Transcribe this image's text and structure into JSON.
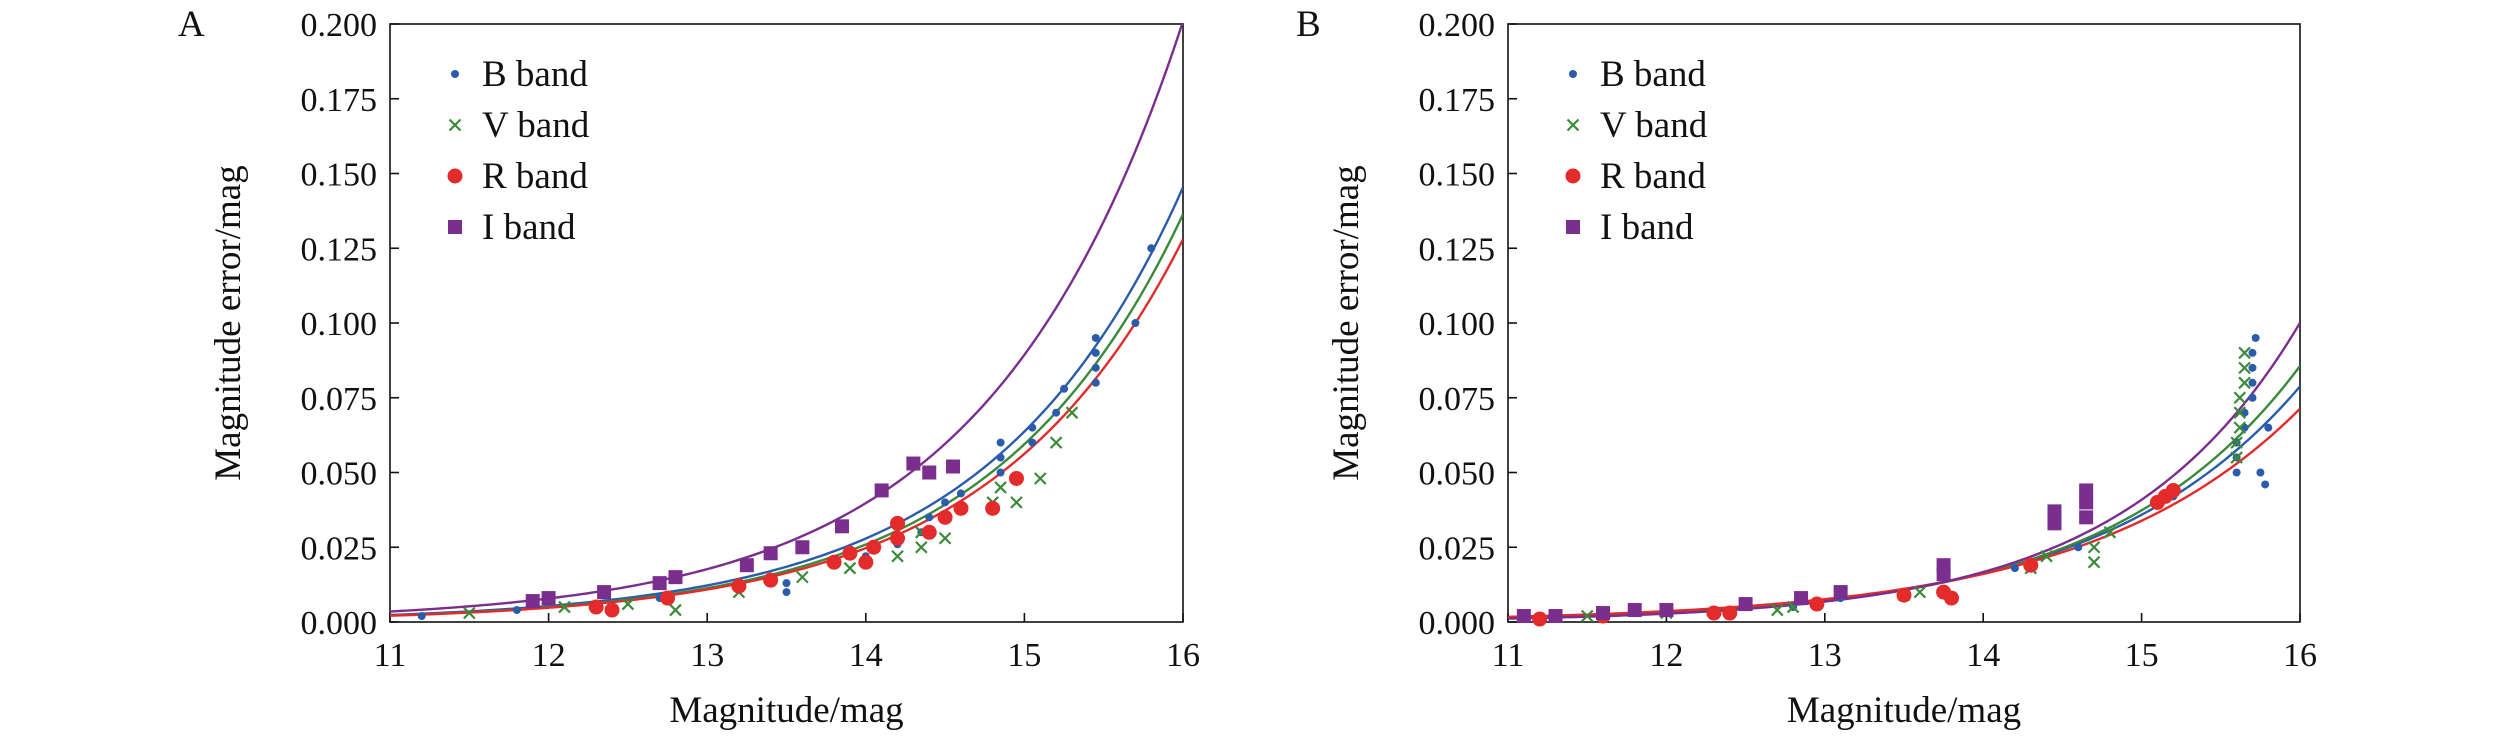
{
  "colors": {
    "B": "#2a5caa",
    "V": "#3a8a3a",
    "R": "#e32b2b",
    "I": "#7a2e8e",
    "axis": "#111111"
  },
  "chart_data": [
    {
      "panel_label": "A",
      "type": "scatter",
      "xlabel": "Magnitude/mag",
      "ylabel": "Magnitude error/mag",
      "xlim": [
        11,
        16
      ],
      "ylim": [
        0,
        0.2
      ],
      "x_ticks": [
        "11",
        "12",
        "13",
        "14",
        "15",
        "16"
      ],
      "y_ticks": [
        "0.000",
        "0.025",
        "0.050",
        "0.075",
        "0.100",
        "0.125",
        "0.150",
        "0.175",
        "0.200"
      ],
      "legend_position": "top-left",
      "series": [
        {
          "name": "B band",
          "marker": "dot",
          "color_key": "B",
          "points": [
            [
              11.2,
              0.002
            ],
            [
              11.8,
              0.004
            ],
            [
              12.3,
              0.006
            ],
            [
              12.7,
              0.008
            ],
            [
              13.2,
              0.011
            ],
            [
              13.5,
              0.013
            ],
            [
              13.5,
              0.01
            ],
            [
              13.8,
              0.02
            ],
            [
              14.0,
              0.022
            ],
            [
              14.2,
              0.026
            ],
            [
              14.35,
              0.03
            ],
            [
              14.4,
              0.035
            ],
            [
              14.5,
              0.04
            ],
            [
              14.6,
              0.043
            ],
            [
              14.85,
              0.05
            ],
            [
              14.85,
              0.055
            ],
            [
              14.85,
              0.06
            ],
            [
              15.05,
              0.06
            ],
            [
              15.05,
              0.065
            ],
            [
              15.2,
              0.07
            ],
            [
              15.25,
              0.078
            ],
            [
              15.45,
              0.08
            ],
            [
              15.45,
              0.085
            ],
            [
              15.45,
              0.09
            ],
            [
              15.45,
              0.095
            ],
            [
              15.7,
              0.1
            ],
            [
              15.8,
              0.125
            ]
          ],
          "fit": {
            "a": 0.00235,
            "k": 0.825
          }
        },
        {
          "name": "V band",
          "marker": "x",
          "color_key": "V",
          "points": [
            [
              11.5,
              0.003
            ],
            [
              12.1,
              0.005
            ],
            [
              12.5,
              0.006
            ],
            [
              12.8,
              0.004
            ],
            [
              13.2,
              0.01
            ],
            [
              13.6,
              0.015
            ],
            [
              13.9,
              0.018
            ],
            [
              14.2,
              0.022
            ],
            [
              14.35,
              0.025
            ],
            [
              14.35,
              0.03
            ],
            [
              14.5,
              0.028
            ],
            [
              14.8,
              0.04
            ],
            [
              14.85,
              0.045
            ],
            [
              14.95,
              0.04
            ],
            [
              15.1,
              0.048
            ],
            [
              15.2,
              0.06
            ],
            [
              15.3,
              0.07
            ]
          ],
          "fit": {
            "a": 0.00215,
            "k": 0.83
          }
        },
        {
          "name": "R band",
          "marker": "circle",
          "color_key": "R",
          "points": [
            [
              12.3,
              0.005
            ],
            [
              12.4,
              0.004
            ],
            [
              12.75,
              0.008
            ],
            [
              13.2,
              0.012
            ],
            [
              13.4,
              0.014
            ],
            [
              13.8,
              0.02
            ],
            [
              13.9,
              0.023
            ],
            [
              14.0,
              0.02
            ],
            [
              14.05,
              0.025
            ],
            [
              14.2,
              0.028
            ],
            [
              14.2,
              0.033
            ],
            [
              14.4,
              0.03
            ],
            [
              14.5,
              0.035
            ],
            [
              14.6,
              0.038
            ],
            [
              14.8,
              0.038
            ],
            [
              14.95,
              0.048
            ]
          ],
          "fit": {
            "a": 0.0021,
            "k": 0.822
          }
        },
        {
          "name": "I band",
          "marker": "square",
          "color_key": "I",
          "points": [
            [
              11.9,
              0.007
            ],
            [
              12.0,
              0.008
            ],
            [
              12.35,
              0.01
            ],
            [
              12.7,
              0.013
            ],
            [
              12.8,
              0.015
            ],
            [
              13.25,
              0.019
            ],
            [
              13.4,
              0.023
            ],
            [
              13.6,
              0.025
            ],
            [
              13.85,
              0.032
            ],
            [
              14.1,
              0.044
            ],
            [
              14.3,
              0.053
            ],
            [
              14.4,
              0.05
            ],
            [
              14.55,
              0.052
            ]
          ],
          "fit": {
            "a": 0.0035,
            "k": 0.81
          }
        }
      ]
    },
    {
      "panel_label": "B",
      "type": "scatter",
      "xlabel": "Magnitude/mag",
      "ylabel": "Magnitude error/mag",
      "xlim": [
        11,
        16
      ],
      "ylim": [
        0,
        0.2
      ],
      "x_ticks": [
        "11",
        "12",
        "13",
        "14",
        "15",
        "16"
      ],
      "y_ticks": [
        "0.000",
        "0.025",
        "0.050",
        "0.075",
        "0.100",
        "0.125",
        "0.150",
        "0.175",
        "0.200"
      ],
      "legend_position": "top-left",
      "series": [
        {
          "name": "B band",
          "marker": "dot",
          "color_key": "B",
          "points": [
            [
              11.3,
              0.002
            ],
            [
              11.8,
              0.003
            ],
            [
              12.3,
              0.003
            ],
            [
              12.8,
              0.005
            ],
            [
              13.1,
              0.008
            ],
            [
              13.5,
              0.01
            ],
            [
              14.2,
              0.018
            ],
            [
              14.6,
              0.025
            ],
            [
              15.1,
              0.04
            ],
            [
              15.2,
              0.042
            ],
            [
              15.6,
              0.05
            ],
            [
              15.6,
              0.055
            ],
            [
              15.6,
              0.06
            ],
            [
              15.65,
              0.065
            ],
            [
              15.65,
              0.07
            ],
            [
              15.7,
              0.075
            ],
            [
              15.7,
              0.08
            ],
            [
              15.7,
              0.085
            ],
            [
              15.7,
              0.09
            ],
            [
              15.72,
              0.095
            ],
            [
              15.75,
              0.05
            ],
            [
              15.78,
              0.046
            ],
            [
              15.8,
              0.065
            ]
          ],
          "fit": {
            "a": 0.00154,
            "k": 0.787
          }
        },
        {
          "name": "V band",
          "marker": "x",
          "color_key": "V",
          "points": [
            [
              11.5,
              0.002
            ],
            [
              12.0,
              0.003
            ],
            [
              12.7,
              0.004
            ],
            [
              12.8,
              0.005
            ],
            [
              13.5,
              0.009
            ],
            [
              13.6,
              0.01
            ],
            [
              14.3,
              0.018
            ],
            [
              14.4,
              0.022
            ],
            [
              14.7,
              0.02
            ],
            [
              14.7,
              0.025
            ],
            [
              14.8,
              0.03
            ],
            [
              15.6,
              0.055
            ],
            [
              15.6,
              0.06
            ],
            [
              15.62,
              0.065
            ],
            [
              15.62,
              0.07
            ],
            [
              15.62,
              0.075
            ],
            [
              15.65,
              0.08
            ],
            [
              15.65,
              0.085
            ],
            [
              15.65,
              0.09
            ]
          ],
          "fit": {
            "a": 0.00135,
            "k": 0.83
          }
        },
        {
          "name": "R band",
          "marker": "circle",
          "color_key": "R",
          "points": [
            [
              11.2,
              0.001
            ],
            [
              11.6,
              0.002
            ],
            [
              12.3,
              0.003
            ],
            [
              12.4,
              0.003
            ],
            [
              12.95,
              0.006
            ],
            [
              13.5,
              0.009
            ],
            [
              13.75,
              0.01
            ],
            [
              13.8,
              0.008
            ],
            [
              14.3,
              0.019
            ],
            [
              15.1,
              0.04
            ],
            [
              15.15,
              0.042
            ],
            [
              15.2,
              0.044
            ]
          ],
          "fit": {
            "a": 0.00172,
            "k": 0.745
          }
        },
        {
          "name": "I band",
          "marker": "square",
          "color_key": "I",
          "points": [
            [
              11.1,
              0.002
            ],
            [
              11.3,
              0.002
            ],
            [
              11.6,
              0.003
            ],
            [
              11.8,
              0.004
            ],
            [
              12.0,
              0.004
            ],
            [
              12.5,
              0.006
            ],
            [
              12.85,
              0.008
            ],
            [
              13.1,
              0.01
            ],
            [
              13.75,
              0.016
            ],
            [
              13.75,
              0.019
            ],
            [
              14.45,
              0.033
            ],
            [
              14.45,
              0.037
            ],
            [
              14.65,
              0.035
            ],
            [
              14.65,
              0.04
            ],
            [
              14.65,
              0.044
            ]
          ],
          "fit": {
            "a": 0.00114,
            "k": 0.895
          }
        }
      ]
    }
  ]
}
